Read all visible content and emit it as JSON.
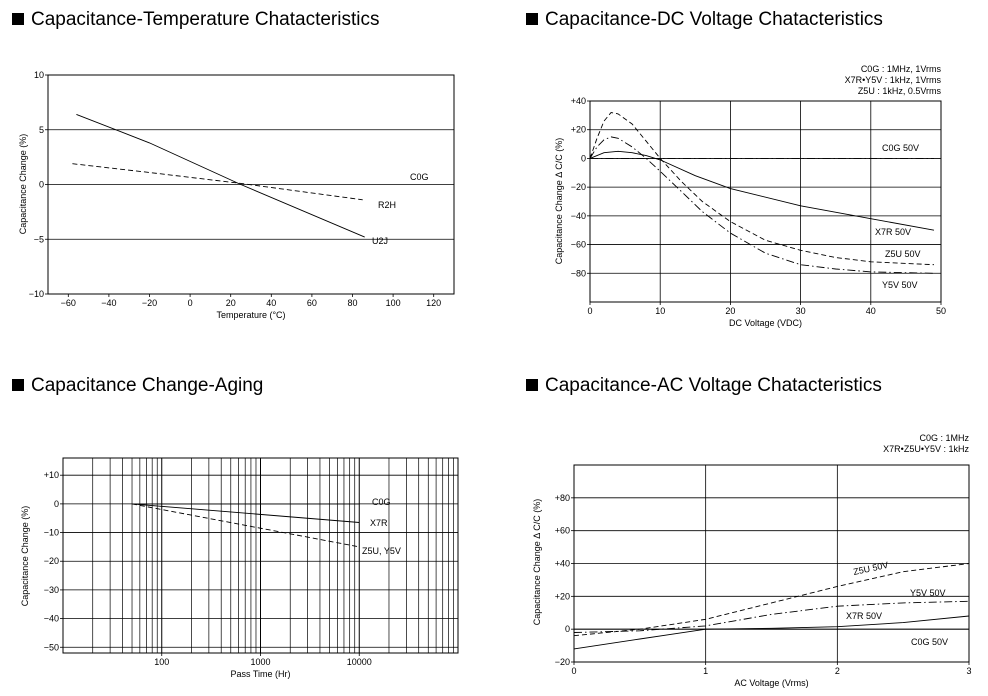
{
  "chart_data": [
    {
      "id": "temp",
      "type": "line",
      "title": "Capacitance-Temperature Chatacteristics",
      "xlabel": "Temperature (°C)",
      "ylabel": "Capacitance Change (%)",
      "xlim": [
        -70,
        130
      ],
      "ylim": [
        -10,
        10
      ],
      "xticks": [
        -60,
        -40,
        -20,
        0,
        20,
        40,
        60,
        80,
        100,
        120
      ],
      "xtick_labels": [
        "−60",
        "−40",
        "−20",
        "0",
        "20",
        "40",
        "60",
        "80",
        "100",
        "120"
      ],
      "yticks": [
        10,
        5,
        0,
        -5,
        -10
      ],
      "ytick_labels": [
        "10",
        "5",
        "0",
        "−5",
        "−10"
      ],
      "grid": "horizontal",
      "notes": [],
      "series": [
        {
          "name": "C0G",
          "style": "solid",
          "x": [],
          "y": []
        },
        {
          "name": "R2H",
          "style": "dashed",
          "x": [
            -58,
            -20,
            25,
            85
          ],
          "y": [
            1.9,
            1.1,
            0.1,
            -1.4
          ]
        },
        {
          "name": "U2J",
          "style": "solid",
          "x": [
            -56,
            -20,
            25,
            86
          ],
          "y": [
            6.4,
            3.8,
            0,
            -4.8
          ]
        }
      ]
    },
    {
      "id": "dc",
      "type": "line",
      "title": "Capacitance-DC Voltage Chatacteristics",
      "xlabel": "DC Voltage (VDC)",
      "ylabel": "Capacitance Change Δ C/C (%)",
      "xlim": [
        0,
        50
      ],
      "ylim": [
        -100,
        40
      ],
      "xticks": [
        0,
        10,
        20,
        30,
        40,
        50
      ],
      "xtick_labels": [
        "0",
        "10",
        "20",
        "30",
        "40",
        "50"
      ],
      "yticks": [
        40,
        20,
        0,
        -20,
        -40,
        -60,
        -80
      ],
      "ytick_labels": [
        "+40",
        "+20",
        "0",
        "−20",
        "−40",
        "−60",
        "−80"
      ],
      "grid": "both",
      "notes": [
        "C0G : 1MHz, 1Vrms",
        "X7R•Y5V : 1kHz, 1Vrms",
        "Z5U : 1kHz, 0.5Vrms"
      ],
      "series": [
        {
          "name": "C0G 50V",
          "style": "dashdot",
          "x": [
            0,
            10,
            20,
            30,
            40,
            49
          ],
          "y": [
            0,
            0,
            0,
            0,
            0,
            0
          ]
        },
        {
          "name": "X7R 50V",
          "style": "solid",
          "x": [
            0,
            2,
            4,
            6,
            8,
            10,
            15,
            20,
            30,
            40,
            49
          ],
          "y": [
            0,
            4,
            5,
            4,
            2,
            -1,
            -12,
            -21,
            -33,
            -42,
            -50
          ]
        },
        {
          "name": "Z5U 50V",
          "style": "dashed",
          "x": [
            0,
            1,
            2,
            3,
            4,
            6,
            8,
            10,
            13,
            16,
            20,
            25,
            30,
            35,
            40,
            49
          ],
          "y": [
            0,
            14,
            26,
            32,
            31,
            24,
            12,
            0,
            -16,
            -30,
            -44,
            -57,
            -64,
            -69,
            -72,
            -74
          ]
        },
        {
          "name": "Y5V 50V",
          "style": "dashdot",
          "x": [
            0,
            1,
            2,
            3,
            4,
            6,
            8,
            10,
            13,
            16,
            20,
            25,
            30,
            35,
            40,
            49
          ],
          "y": [
            0,
            8,
            13,
            15,
            14,
            8,
            0,
            -9,
            -23,
            -37,
            -52,
            -66,
            -74,
            -77,
            -79,
            -80
          ]
        }
      ]
    },
    {
      "id": "aging",
      "type": "line",
      "title": "Capacitance Change-Aging",
      "xlabel": "Pass Time (Hr)",
      "ylabel": "Capacitance Change (%)",
      "xscale": "log",
      "xlim": [
        10,
        100000
      ],
      "ylim": [
        -52,
        16
      ],
      "xticks": [
        100,
        1000,
        10000
      ],
      "xtick_labels": [
        "100",
        "1000",
        "10000"
      ],
      "yticks": [
        10,
        0,
        -10,
        -20,
        -30,
        -40,
        -50
      ],
      "ytick_labels": [
        "+10",
        "0",
        "−10",
        "−20",
        "−30",
        "−40",
        "−50"
      ],
      "grid": "both",
      "notes": [],
      "series": [
        {
          "name": "C0G",
          "style": "solid",
          "x": [
            50,
            10000
          ],
          "y": [
            0,
            0
          ]
        },
        {
          "name": "X7R",
          "style": "solid",
          "x": [
            50,
            10000
          ],
          "y": [
            0,
            -6.5
          ]
        },
        {
          "name": "Z5U, Y5V",
          "style": "dashed",
          "x": [
            50,
            10000
          ],
          "y": [
            0,
            -15
          ]
        }
      ]
    },
    {
      "id": "ac",
      "type": "line",
      "title": "Capacitance-AC Voltage Chatacteristics",
      "xlabel": "AC Voltage (Vrms)",
      "ylabel": "Capacitance Change Δ C/C (%)",
      "xlim": [
        0,
        3
      ],
      "ylim": [
        -20,
        100
      ],
      "xticks": [
        0,
        1,
        2,
        3
      ],
      "xtick_labels": [
        "0",
        "1",
        "2",
        "3"
      ],
      "yticks": [
        80,
        60,
        40,
        20,
        0,
        -20
      ],
      "ytick_labels": [
        "+80",
        "+60",
        "+40",
        "+20",
        "0",
        "−20"
      ],
      "grid": "both",
      "notes": [
        "C0G : 1MHz",
        "X7R•Z5U•Y5V : 1kHz"
      ],
      "series": [
        {
          "name": "C0G 50V",
          "style": "solid",
          "x": [
            0,
            1,
            2,
            3
          ],
          "y": [
            0,
            0,
            0,
            0
          ]
        },
        {
          "name": "X7R 50V",
          "style": "solid",
          "x": [
            0,
            0.5,
            1,
            1.5,
            2,
            2.5,
            3
          ],
          "y": [
            -12,
            -6,
            0,
            0.5,
            1.5,
            4,
            8
          ]
        },
        {
          "name": "Z5U 50V",
          "style": "dashed",
          "x": [
            0,
            0.5,
            1,
            1.5,
            2,
            2.5,
            3
          ],
          "y": [
            -4,
            0,
            6,
            16,
            26,
            35,
            40
          ]
        },
        {
          "name": "Y5V 50V",
          "style": "dashdot",
          "x": [
            0,
            0.5,
            1,
            1.5,
            2,
            2.5,
            3
          ],
          "y": [
            -2,
            -1,
            2,
            9,
            14,
            16,
            17
          ]
        }
      ]
    }
  ]
}
